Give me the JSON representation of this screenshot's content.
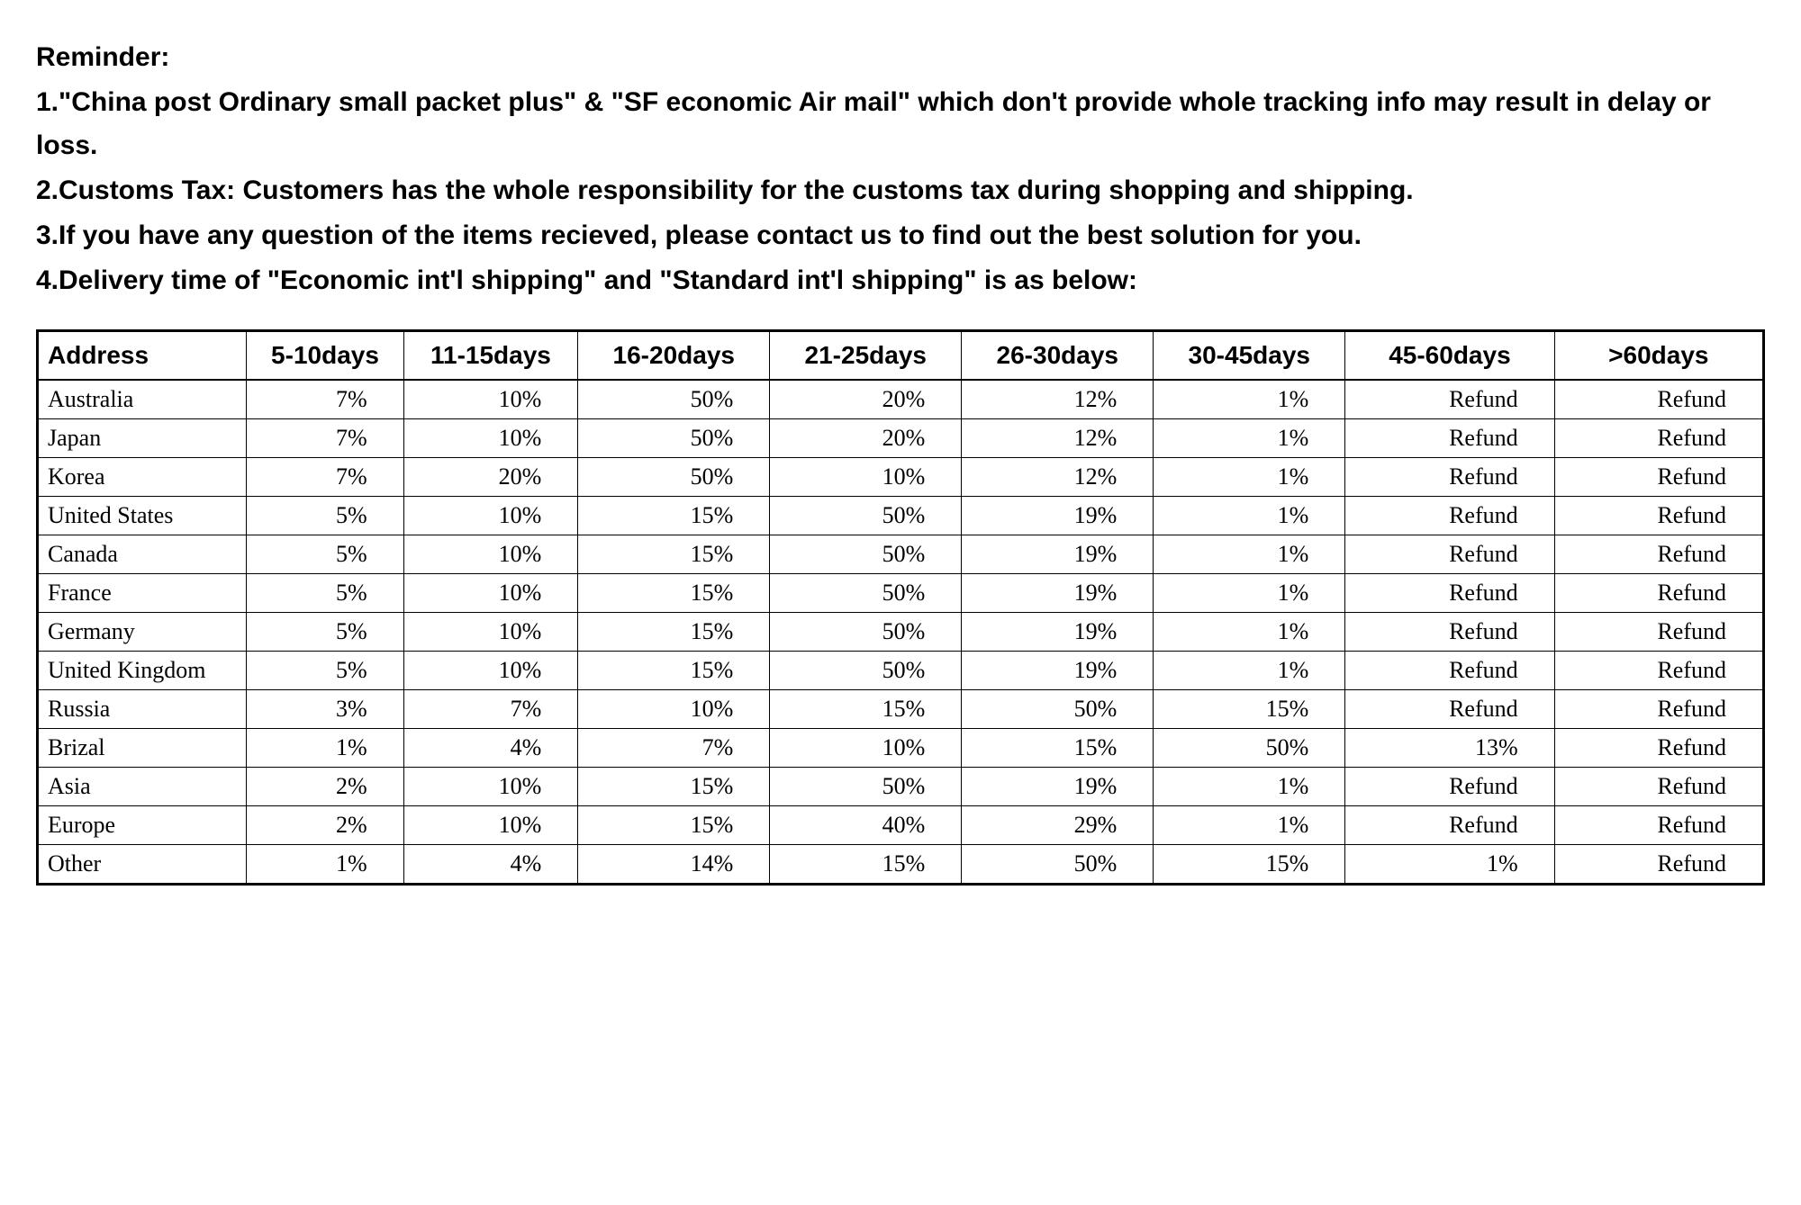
{
  "reminder": {
    "title": "Reminder:",
    "lines": [
      "1.\"China post Ordinary small packet plus\" & \"SF economic Air mail\" which don't provide whole tracking info may result in delay or loss.",
      "2.Customs Tax: Customers has the whole responsibility for the customs tax during shopping and shipping.",
      "3.If you have any question of the items recieved, please contact us to find out the best solution for you.",
      "4.Delivery time of \"Economic int'l shipping\" and \"Standard int'l shipping\" is as below:"
    ]
  },
  "table": {
    "type": "table",
    "columns": [
      "Address",
      "5-10days",
      "11-15days",
      "16-20days",
      "21-25days",
      "26-30days",
      "30-45days",
      "45-60days",
      ">60days"
    ],
    "rows": [
      [
        "Australia",
        "7%",
        "10%",
        "50%",
        "20%",
        "12%",
        "1%",
        "Refund",
        "Refund"
      ],
      [
        "Japan",
        "7%",
        "10%",
        "50%",
        "20%",
        "12%",
        "1%",
        "Refund",
        "Refund"
      ],
      [
        "Korea",
        "7%",
        "20%",
        "50%",
        "10%",
        "12%",
        "1%",
        "Refund",
        "Refund"
      ],
      [
        "United States",
        "5%",
        "10%",
        "15%",
        "50%",
        "19%",
        "1%",
        "Refund",
        "Refund"
      ],
      [
        "Canada",
        "5%",
        "10%",
        "15%",
        "50%",
        "19%",
        "1%",
        "Refund",
        "Refund"
      ],
      [
        "France",
        "5%",
        "10%",
        "15%",
        "50%",
        "19%",
        "1%",
        "Refund",
        "Refund"
      ],
      [
        "Germany",
        "5%",
        "10%",
        "15%",
        "50%",
        "19%",
        "1%",
        "Refund",
        "Refund"
      ],
      [
        "United Kingdom",
        "5%",
        "10%",
        "15%",
        "50%",
        "19%",
        "1%",
        "Refund",
        "Refund"
      ],
      [
        "Russia",
        "3%",
        "7%",
        "10%",
        "15%",
        "50%",
        "15%",
        "Refund",
        "Refund"
      ],
      [
        "Brizal",
        "1%",
        "4%",
        "7%",
        "10%",
        "15%",
        "50%",
        "13%",
        "Refund"
      ],
      [
        "Asia",
        "2%",
        "10%",
        "15%",
        "50%",
        "19%",
        "1%",
        "Refund",
        "Refund"
      ],
      [
        "Europe",
        "2%",
        "10%",
        "15%",
        "40%",
        "29%",
        "1%",
        "Refund",
        "Refund"
      ],
      [
        "Other",
        "1%",
        "4%",
        "14%",
        "15%",
        "50%",
        "15%",
        "1%",
        "Refund"
      ]
    ],
    "header_fontsize": 28,
    "body_fontsize": 26,
    "border_color": "#000000",
    "background_color": "#ffffff",
    "col_widths_pct": [
      12,
      9,
      10,
      11,
      11,
      11,
      11,
      12,
      12
    ],
    "col_align": [
      "left",
      "right",
      "right",
      "right",
      "right",
      "right",
      "right",
      "right",
      "right"
    ],
    "body_font_family": "serif"
  }
}
